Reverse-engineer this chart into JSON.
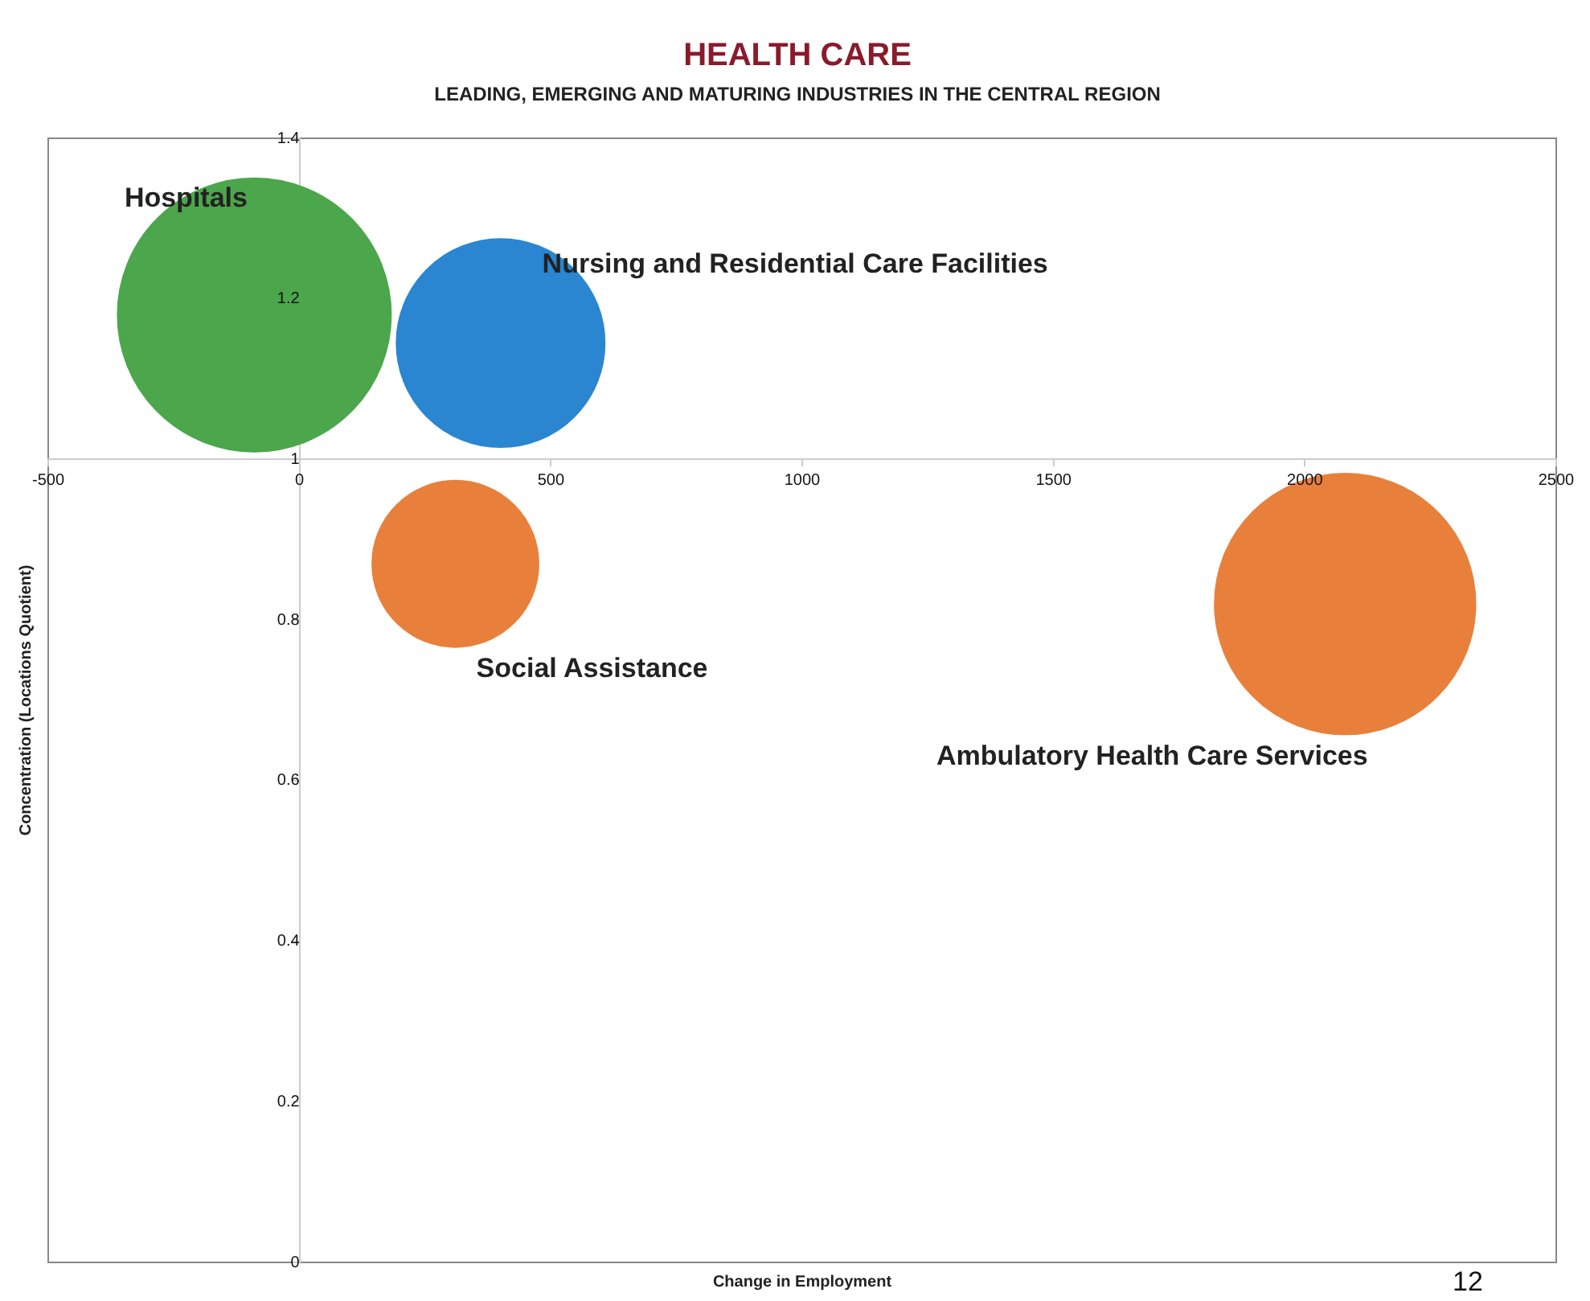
{
  "chart_data": {
    "type": "bubble",
    "title": "HEALTH CARE",
    "subtitle": "LEADING, EMERGING AND MATURING INDUSTRIES IN THE CENTRAL REGION",
    "xlabel": "Change in Employment",
    "ylabel": "Concentration (Locations Quotient)",
    "xlim": [
      -500,
      2500
    ],
    "xticks": [
      -500,
      0,
      500,
      1000,
      1500,
      2000,
      2500
    ],
    "ylim": [
      0,
      1.4
    ],
    "yticks": [
      0,
      0.2,
      0.4,
      0.6,
      0.8,
      1,
      1.2,
      1.4
    ],
    "series": [
      {
        "name": "Hospitals",
        "color": "#4ca64c",
        "x": [
          -90
        ],
        "values": [
          1.18
        ],
        "sizes": [
          1
        ]
      },
      {
        "name": "Nursing and Residential Care Facilities",
        "color": "#2a86d0",
        "x": [
          400
        ],
        "values": [
          1.145
        ],
        "sizes": [
          0.58
        ]
      },
      {
        "name": "Social Assistance",
        "color": "#e8803c",
        "x": [
          310
        ],
        "values": [
          0.87
        ],
        "sizes": [
          0.37
        ]
      },
      {
        "name": "Ambulatory Health Care Services",
        "color": "#e8803c",
        "x": [
          2080
        ],
        "values": [
          0.82
        ],
        "sizes": [
          0.91
        ]
      }
    ],
    "grid": false,
    "legend": false,
    "annotations": [
      "12"
    ]
  }
}
